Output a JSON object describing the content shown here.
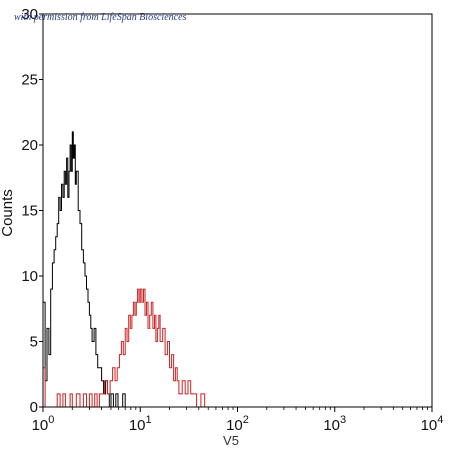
{
  "watermark": "with permission from LifeSpan Biosciences",
  "chart_data": {
    "type": "line",
    "xscale": "log",
    "xlabel": "V5",
    "ylabel": "Counts",
    "xlim": [
      1,
      10000
    ],
    "ylim": [
      0,
      30
    ],
    "grid": false,
    "x_ticks": [
      {
        "base": "10",
        "exp": "0"
      },
      {
        "base": "10",
        "exp": "1"
      },
      {
        "base": "10",
        "exp": "2"
      },
      {
        "base": "10",
        "exp": "3"
      },
      {
        "base": "10",
        "exp": "4"
      }
    ],
    "y_ticks": [
      "0",
      "5",
      "10",
      "15",
      "20",
      "25",
      "30"
    ],
    "series": [
      {
        "color": "#000000",
        "points": [
          [
            1.0,
            8
          ],
          [
            1.05,
            2
          ],
          [
            1.1,
            6
          ],
          [
            1.15,
            4
          ],
          [
            1.2,
            9
          ],
          [
            1.25,
            11
          ],
          [
            1.3,
            12
          ],
          [
            1.35,
            13
          ],
          [
            1.4,
            14
          ],
          [
            1.45,
            16
          ],
          [
            1.5,
            15
          ],
          [
            1.55,
            17
          ],
          [
            1.6,
            16
          ],
          [
            1.65,
            18
          ],
          [
            1.7,
            17
          ],
          [
            1.75,
            19
          ],
          [
            1.8,
            16
          ],
          [
            1.85,
            18
          ],
          [
            1.9,
            20
          ],
          [
            1.95,
            18
          ],
          [
            2.0,
            21
          ],
          [
            2.05,
            19
          ],
          [
            2.1,
            20
          ],
          [
            2.15,
            17
          ],
          [
            2.2,
            18
          ],
          [
            2.3,
            15
          ],
          [
            2.4,
            14
          ],
          [
            2.5,
            12
          ],
          [
            2.6,
            11
          ],
          [
            2.7,
            10
          ],
          [
            2.8,
            9
          ],
          [
            2.9,
            8
          ],
          [
            3.0,
            7
          ],
          [
            3.1,
            6
          ],
          [
            3.2,
            5
          ],
          [
            3.35,
            6
          ],
          [
            3.5,
            4
          ],
          [
            3.65,
            3
          ],
          [
            3.8,
            3
          ],
          [
            4.0,
            2
          ],
          [
            4.2,
            1
          ],
          [
            4.4,
            2
          ],
          [
            4.6,
            1
          ],
          [
            4.8,
            0
          ],
          [
            5.0,
            1
          ],
          [
            5.3,
            0
          ],
          [
            5.6,
            1
          ],
          [
            5.9,
            0
          ],
          [
            6.2,
            0
          ],
          [
            6.6,
            1
          ],
          [
            7.0,
            0
          ],
          [
            8.0,
            0
          ],
          [
            9.0,
            0
          ],
          [
            10.0,
            0
          ],
          [
            12.0,
            0
          ]
        ]
      },
      {
        "color": "#cc2222",
        "points": [
          [
            1.0,
            3
          ],
          [
            1.05,
            0
          ],
          [
            1.1,
            0
          ],
          [
            1.3,
            0
          ],
          [
            1.4,
            1
          ],
          [
            1.5,
            0
          ],
          [
            1.6,
            1
          ],
          [
            1.7,
            0
          ],
          [
            1.9,
            1
          ],
          [
            2.0,
            0
          ],
          [
            2.2,
            1
          ],
          [
            2.4,
            0
          ],
          [
            2.6,
            1
          ],
          [
            2.8,
            0
          ],
          [
            3.0,
            1
          ],
          [
            3.2,
            0
          ],
          [
            3.4,
            1
          ],
          [
            3.6,
            0
          ],
          [
            3.8,
            1
          ],
          [
            4.0,
            1
          ],
          [
            4.3,
            2
          ],
          [
            4.6,
            1
          ],
          [
            4.9,
            2
          ],
          [
            5.2,
            3
          ],
          [
            5.5,
            2
          ],
          [
            5.8,
            3
          ],
          [
            6.1,
            4
          ],
          [
            6.4,
            5
          ],
          [
            6.7,
            4
          ],
          [
            7.0,
            6
          ],
          [
            7.3,
            5
          ],
          [
            7.6,
            7
          ],
          [
            7.9,
            6
          ],
          [
            8.2,
            7
          ],
          [
            8.5,
            8
          ],
          [
            8.8,
            7
          ],
          [
            9.1,
            8
          ],
          [
            9.4,
            9
          ],
          [
            9.7,
            8
          ],
          [
            10.0,
            9
          ],
          [
            10.4,
            8
          ],
          [
            10.8,
            9
          ],
          [
            11.2,
            7
          ],
          [
            11.6,
            8
          ],
          [
            12.0,
            6
          ],
          [
            12.5,
            7
          ],
          [
            13.0,
            8
          ],
          [
            13.5,
            6
          ],
          [
            14.0,
            7
          ],
          [
            14.5,
            5
          ],
          [
            15.0,
            6
          ],
          [
            15.5,
            7
          ],
          [
            16.0,
            5
          ],
          [
            17.0,
            6
          ],
          [
            18.0,
            4
          ],
          [
            19.0,
            5
          ],
          [
            20.0,
            3
          ],
          [
            21.0,
            4
          ],
          [
            22.0,
            2
          ],
          [
            23.0,
            3
          ],
          [
            24.0,
            2
          ],
          [
            25.0,
            1
          ],
          [
            27.0,
            2
          ],
          [
            29.0,
            1
          ],
          [
            31.0,
            2
          ],
          [
            33.0,
            1
          ],
          [
            35.0,
            1
          ],
          [
            38.0,
            0
          ],
          [
            42.0,
            1
          ],
          [
            46.0,
            0
          ],
          [
            60.0,
            0
          ],
          [
            100.0,
            0
          ],
          [
            500.0,
            0
          ],
          [
            2000.0,
            0
          ],
          [
            10000.0,
            0
          ]
        ]
      }
    ]
  }
}
